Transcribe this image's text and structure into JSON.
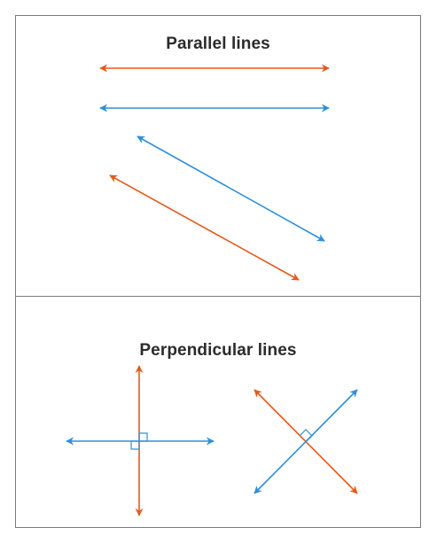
{
  "panels": {
    "parallel": {
      "title": "Parallel lines"
    },
    "perpendicular": {
      "title": "Perpendicular lines"
    }
  },
  "colors": {
    "orange": "#e55a1c",
    "blue": "#2f8fd8",
    "frame": "#7a7a7a"
  }
}
